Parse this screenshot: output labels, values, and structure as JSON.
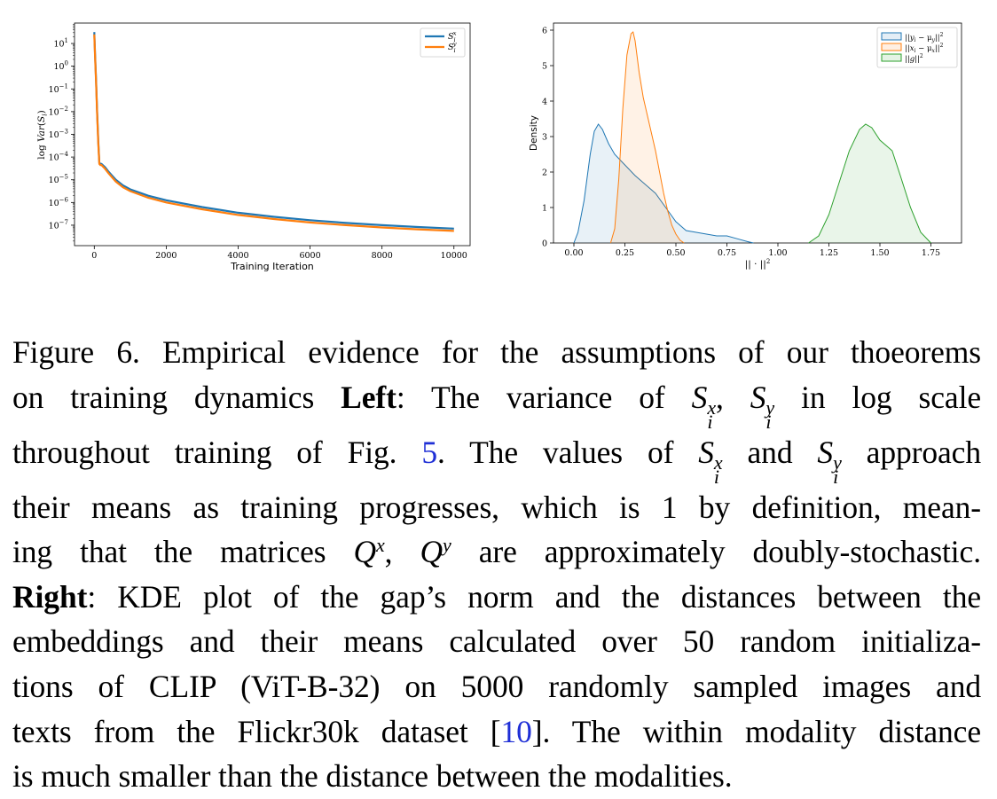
{
  "chart_data": [
    {
      "type": "line",
      "panel": "left",
      "xlabel": "Training Iteration",
      "ylabel": "log Var(S_i)",
      "yscale": "log",
      "xlim": [
        -550,
        10450
      ],
      "ylim_exp": [
        -7.9,
        1.9
      ],
      "xticks": [
        0,
        2000,
        4000,
        6000,
        8000,
        10000
      ],
      "xtick_labels": [
        "0",
        "2000",
        "4000",
        "6000",
        "8000",
        "10000"
      ],
      "ytick_exps": [
        1,
        0,
        -1,
        -2,
        -3,
        -4,
        -5,
        -6,
        -7
      ],
      "legend": [
        "S_i^x",
        "S_i^y"
      ],
      "legend_position": "top-right",
      "series": [
        {
          "name": "S_i^x",
          "color": "#1f77b4",
          "x": [
            0,
            20,
            50,
            80,
            110,
            140,
            170,
            200,
            300,
            400,
            600,
            800,
            1000,
            1500,
            2000,
            3000,
            4000,
            5000,
            6000,
            7000,
            8000,
            9000,
            10000
          ],
          "exp": [
            1.5,
            0.6,
            -0.6,
            -2.0,
            -3.3,
            -4.25,
            -4.3,
            -4.3,
            -4.45,
            -4.65,
            -5.0,
            -5.25,
            -5.42,
            -5.7,
            -5.9,
            -6.2,
            -6.45,
            -6.63,
            -6.78,
            -6.9,
            -7.0,
            -7.08,
            -7.15
          ]
        },
        {
          "name": "S_i^y",
          "color": "#ff7f0e",
          "x": [
            0,
            20,
            50,
            80,
            110,
            140,
            170,
            200,
            300,
            400,
            600,
            800,
            1000,
            1500,
            2000,
            3000,
            4000,
            5000,
            6000,
            7000,
            8000,
            9000,
            10000
          ],
          "exp": [
            1.4,
            0.5,
            -0.7,
            -2.1,
            -3.4,
            -4.3,
            -4.35,
            -4.35,
            -4.52,
            -4.72,
            -5.08,
            -5.33,
            -5.5,
            -5.79,
            -6.0,
            -6.3,
            -6.55,
            -6.73,
            -6.88,
            -7.0,
            -7.1,
            -7.18,
            -7.25
          ]
        }
      ]
    },
    {
      "type": "area",
      "panel": "right",
      "xlabel": "|| · ||^2",
      "ylabel": "Density",
      "xlim": [
        -0.1,
        1.9
      ],
      "ylim": [
        0,
        6.2
      ],
      "xticks": [
        0.0,
        0.25,
        0.5,
        0.75,
        1.0,
        1.25,
        1.5,
        1.75
      ],
      "xtick_labels": [
        "0.00",
        "0.25",
        "0.50",
        "0.75",
        "1.00",
        "1.25",
        "1.50",
        "1.75"
      ],
      "yticks": [
        0,
        1,
        2,
        3,
        4,
        5,
        6
      ],
      "legend": [
        "||y_i − μ_y||^2",
        "||x_i − μ_x||^2",
        "||g||^2"
      ],
      "legend_position": "top-right",
      "series": [
        {
          "name": "||y_i − μ_y||^2",
          "color": "#1f77b4",
          "x": [
            0.0,
            0.02,
            0.05,
            0.08,
            0.1,
            0.12,
            0.14,
            0.17,
            0.2,
            0.25,
            0.3,
            0.35,
            0.4,
            0.45,
            0.5,
            0.55,
            0.6,
            0.65,
            0.7,
            0.75,
            0.8,
            0.85,
            0.88
          ],
          "y": [
            0.0,
            0.3,
            1.2,
            2.5,
            3.15,
            3.35,
            3.2,
            2.8,
            2.5,
            2.2,
            1.9,
            1.65,
            1.4,
            1.0,
            0.6,
            0.35,
            0.3,
            0.25,
            0.2,
            0.2,
            0.12,
            0.04,
            0.0
          ]
        },
        {
          "name": "||x_i − μ_x||^2",
          "color": "#ff7f0e",
          "x": [
            0.18,
            0.2,
            0.22,
            0.24,
            0.26,
            0.28,
            0.29,
            0.3,
            0.32,
            0.34,
            0.36,
            0.38,
            0.4,
            0.42,
            0.44,
            0.46,
            0.48,
            0.5,
            0.52,
            0.54
          ],
          "y": [
            0.0,
            0.4,
            1.8,
            3.8,
            5.3,
            5.9,
            5.95,
            5.7,
            4.8,
            4.1,
            3.6,
            3.1,
            2.6,
            2.0,
            1.4,
            0.9,
            0.5,
            0.25,
            0.08,
            0.0
          ]
        },
        {
          "name": "||g||^2",
          "color": "#2ca02c",
          "x": [
            1.15,
            1.2,
            1.25,
            1.3,
            1.35,
            1.4,
            1.43,
            1.46,
            1.5,
            1.53,
            1.56,
            1.6,
            1.65,
            1.7,
            1.75
          ],
          "y": [
            0.0,
            0.2,
            0.8,
            1.7,
            2.6,
            3.2,
            3.35,
            3.25,
            2.9,
            2.75,
            2.6,
            1.9,
            1.0,
            0.3,
            0.0
          ]
        }
      ]
    }
  ],
  "caption": {
    "lines": [
      [
        {
          "t": "Figure 6. Empirical evidence for the assumptions of our thoeorems"
        }
      ],
      [
        {
          "t": "on training dynamics "
        },
        {
          "t": "Left",
          "b": true
        },
        {
          "t": ": The variance of "
        },
        {
          "t": "S",
          "i": true,
          "sub": "i",
          "sup": "x"
        },
        {
          "t": ", "
        },
        {
          "t": "S",
          "i": true,
          "sub": "i",
          "sup": "y"
        },
        {
          "t": " in log scale"
        }
      ],
      [
        {
          "t": "throughout training of Fig. "
        },
        {
          "t": "5",
          "ref": true
        },
        {
          "t": ". The values of "
        },
        {
          "t": "S",
          "i": true,
          "sub": "i",
          "sup": "x"
        },
        {
          "t": " and "
        },
        {
          "t": "S",
          "i": true,
          "sub": "i",
          "sup": "y"
        },
        {
          "t": " approach"
        }
      ],
      [
        {
          "t": "their means as training progresses, which is 1 by definition, mean-"
        }
      ],
      [
        {
          "t": "ing that the matrices "
        },
        {
          "t": "Q",
          "i": true,
          "sup": "x"
        },
        {
          "t": ", "
        },
        {
          "t": "Q",
          "i": true,
          "sup": "y"
        },
        {
          "t": " are approximately doubly-stochastic."
        }
      ],
      [
        {
          "t": "Right",
          "b": true
        },
        {
          "t": ": KDE plot of the gap’s norm and the distances between the"
        }
      ],
      [
        {
          "t": "embeddings and their means calculated over 50 random initializa-"
        }
      ],
      [
        {
          "t": "tions of CLIP (ViT-B-32) on 5000 randomly sampled images and"
        }
      ],
      [
        {
          "t": "texts from the Flickr30k dataset ["
        },
        {
          "t": "10",
          "ref": true
        },
        {
          "t": "]. The within modality distance"
        }
      ],
      [
        {
          "t": "is much smaller than the distance between the modalities."
        }
      ]
    ]
  }
}
